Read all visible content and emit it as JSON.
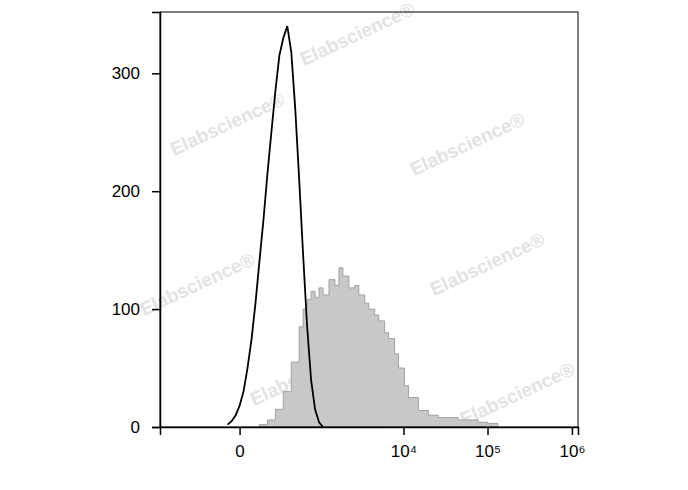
{
  "chart_data": {
    "type": "histogram",
    "log": "x",
    "xlim": [
      -900,
      1180000
    ],
    "xticks": [
      0,
      {
        "value": 10000,
        "label": "10⁴"
      },
      {
        "value": 100000,
        "label": "10⁵"
      },
      {
        "value": 1000000,
        "label": "10⁶"
      }
    ],
    "ylim": [
      0,
      352
    ],
    "yticks": [
      0,
      100,
      200,
      300
    ],
    "annotations": [
      "Elabscience®"
    ],
    "series": [
      {
        "type": "area",
        "color": "#c8c8c8",
        "x": [
          83,
          132,
          192,
          266,
          359,
          473,
          541,
          616,
          699,
          793,
          897,
          1014,
          1212,
          1447,
          1625,
          1825,
          2168,
          2570,
          2878,
          3406,
          3811,
          4501,
          5032,
          5939,
          6635,
          7819,
          8735,
          10290,
          11484,
          15093,
          19820,
          26030,
          44830,
          77150,
          101150,
          132700
        ],
        "values": [
          2,
          6,
          15,
          30,
          55,
          85,
          100,
          108,
          115,
          110,
          118,
          112,
          125,
          120,
          135,
          128,
          118,
          120,
          112,
          105,
          100,
          95,
          90,
          80,
          75,
          62,
          50,
          35,
          25,
          14,
          10,
          8,
          6,
          4,
          3,
          0
        ]
      },
      {
        "type": "line",
        "color": "#000000",
        "x": [
          -45,
          -28,
          -13,
          0,
          13,
          28,
          45,
          63,
          83,
          106,
          132,
          160,
          192,
          227,
          266,
          310,
          359,
          413,
          473,
          541,
          616,
          699,
          793,
          897,
          1014
        ],
        "values": [
          2,
          5,
          10,
          18,
          30,
          50,
          75,
          105,
          140,
          175,
          215,
          250,
          285,
          315,
          330,
          340,
          318,
          270,
          210,
          145,
          85,
          40,
          15,
          4,
          0
        ]
      }
    ]
  }
}
